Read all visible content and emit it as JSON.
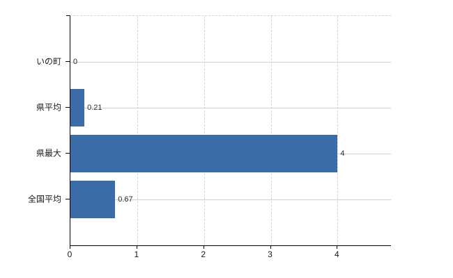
{
  "chart_data": {
    "type": "bar",
    "orientation": "horizontal",
    "title": "",
    "xlabel": "",
    "ylabel": "",
    "categories": [
      "いの町",
      "県平均",
      "県最大",
      "全国平均"
    ],
    "values": [
      0,
      0.21,
      4,
      0.67
    ],
    "value_labels": [
      "0",
      "0.21",
      "4",
      "0.67"
    ],
    "x_ticks": [
      0,
      1,
      2,
      3,
      4
    ],
    "x_tick_labels": [
      "0",
      "1",
      "2",
      "3",
      "4"
    ],
    "xlim": [
      0,
      4.8
    ],
    "grid": true,
    "legend": false,
    "colors": {
      "bar": "#3a6ca8",
      "horizontal_gridline": "#cdd4cd",
      "vertical_gridline": "#d4d4d4",
      "axis": "#000000",
      "text": "#1a1a1a"
    }
  }
}
